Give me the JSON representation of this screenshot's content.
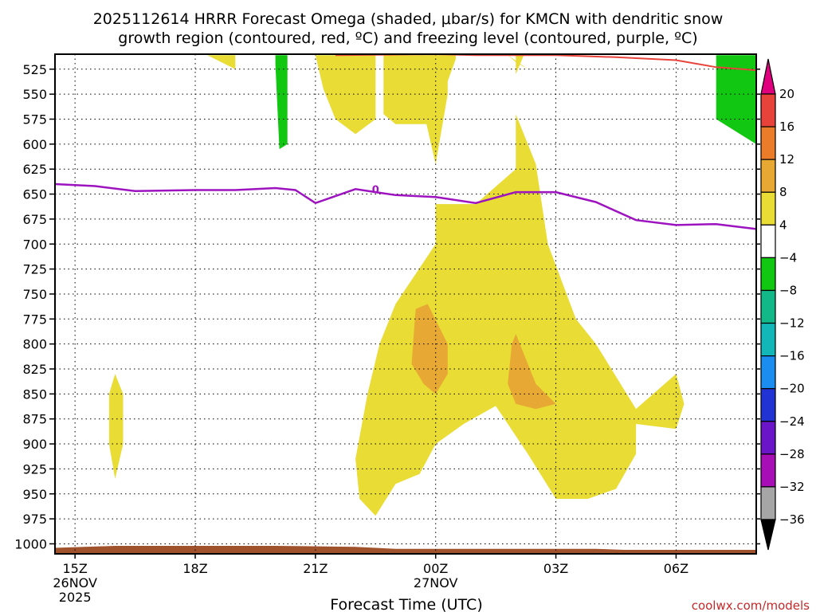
{
  "title_line1": "2025112614 HRRR Forecast Omega (shaded, μbar/s) for KMCN with dendritic snow",
  "title_line2": "growth region (contoured, red, ºC) and freezing level (contoured, purple, ºC)",
  "credit": "coolwx.com/models",
  "chart_data": {
    "type": "heatmap",
    "title": "2025112614 HRRR Forecast Omega (shaded, μbar/s) for KMCN with dendritic snow growth region (contoured, red, ºC) and freezing level (contoured, purple, ºC)",
    "xlabel": "Forecast Time (UTC)",
    "ylabel": "",
    "x_range_hours_utc": [
      14.5,
      32.0
    ],
    "y_range_hpa": [
      1010,
      510
    ],
    "y_ticks": [
      525,
      550,
      575,
      600,
      625,
      650,
      675,
      700,
      725,
      750,
      775,
      800,
      825,
      850,
      875,
      900,
      925,
      950,
      975,
      1000
    ],
    "x_ticks": [
      {
        "hour": 15,
        "label": "15Z",
        "date": "26NOV",
        "year": "2025"
      },
      {
        "hour": 18,
        "label": "18Z",
        "date": "",
        "year": ""
      },
      {
        "hour": 21,
        "label": "21Z",
        "date": "",
        "year": ""
      },
      {
        "hour": 24,
        "label": "00Z",
        "date": "27NOV",
        "year": ""
      },
      {
        "hour": 27,
        "label": "03Z",
        "date": "",
        "year": ""
      },
      {
        "hour": 30,
        "label": "06Z",
        "date": "",
        "year": ""
      }
    ],
    "colorbar": {
      "levels": [
        "20",
        "16",
        "12",
        "8",
        "4",
        "−4",
        "−8",
        "−12",
        "−16",
        "−20",
        "−24",
        "−28",
        "−32",
        "−36"
      ],
      "colors_top_to_bottom": [
        "#e0007e",
        "#e8433b",
        "#eb7d2a",
        "#e8a834",
        "#e8dc35",
        "#ffffff",
        "#12c712",
        "#13b888",
        "#13b7b7",
        "#1b8df0",
        "#2233d3",
        "#6a16c8",
        "#a70eb5",
        "#a6a6a6",
        "#000000"
      ]
    },
    "freezing_level": {
      "label": "0",
      "color": "#9c13bf",
      "points": [
        [
          14.5,
          640
        ],
        [
          15.5,
          642
        ],
        [
          16.5,
          647
        ],
        [
          18,
          646
        ],
        [
          19,
          646
        ],
        [
          20,
          644
        ],
        [
          20.5,
          646
        ],
        [
          21,
          659
        ],
        [
          22,
          645
        ],
        [
          22.5,
          648
        ],
        [
          23,
          651
        ],
        [
          24,
          653
        ],
        [
          25,
          659
        ],
        [
          26,
          648
        ],
        [
          27,
          648
        ],
        [
          28,
          658
        ],
        [
          29,
          676
        ],
        [
          30,
          681
        ],
        [
          31,
          680
        ],
        [
          32,
          685
        ]
      ]
    },
    "dgz_contour": {
      "color": "#e8433b",
      "points": [
        [
          21.5,
          511
        ],
        [
          24,
          510
        ],
        [
          25,
          511
        ],
        [
          27,
          511
        ],
        [
          28.5,
          513
        ],
        [
          30,
          516
        ],
        [
          31,
          523
        ],
        [
          32,
          526
        ]
      ]
    },
    "surface_fill": {
      "color": "#a0522d",
      "points": [
        [
          14.5,
          1004
        ],
        [
          16,
          1002
        ],
        [
          20,
          1002
        ],
        [
          22,
          1003
        ],
        [
          23,
          1005
        ],
        [
          26,
          1005
        ],
        [
          28,
          1005
        ],
        [
          28.7,
          1006
        ],
        [
          32,
          1006
        ]
      ]
    },
    "omega_regions": [
      {
        "value_range": "4 to 8",
        "color": "#e8dc35",
        "points": [
          [
            22,
            511
          ],
          [
            22.7,
            511
          ],
          [
            22.7,
            570
          ],
          [
            23,
            580
          ],
          [
            24.1,
            580
          ],
          [
            24,
            570
          ],
          [
            24.5,
            515
          ],
          [
            24.5,
            511
          ],
          [
            25,
            511
          ],
          [
            25.8,
            511
          ],
          [
            26.3,
            525
          ],
          [
            26,
            518
          ],
          [
            25.8,
            511
          ]
        ]
      },
      {
        "value_range": "4 to 8",
        "color": "#e8dc35",
        "points": [
          [
            18.3,
            511
          ],
          [
            19,
            511
          ],
          [
            19,
            525
          ],
          [
            18.3,
            511
          ]
        ]
      },
      {
        "value_range": "4 to 8",
        "color": "#e8dc35",
        "points": [
          [
            21,
            511
          ],
          [
            22.5,
            511
          ],
          [
            22.5,
            575
          ],
          [
            22,
            590
          ],
          [
            21.5,
            575
          ],
          [
            21.2,
            545
          ],
          [
            21,
            511
          ]
        ]
      },
      {
        "value_range": "4 to 8",
        "color": "#e8dc35",
        "points": [
          [
            23.6,
            511
          ],
          [
            24.3,
            511
          ],
          [
            24.3,
            550
          ],
          [
            24,
            620
          ],
          [
            23.6,
            550
          ],
          [
            23.6,
            511
          ]
        ]
      },
      {
        "value_range": "4 to 8",
        "color": "#e8dc35",
        "points": [
          [
            26.0,
            511
          ],
          [
            26.2,
            511
          ],
          [
            26.0,
            530
          ],
          [
            26.0,
            511
          ]
        ]
      },
      {
        "value_range": "4 to 8",
        "color": "#e8dc35",
        "points": [
          [
            16.0,
            830
          ],
          [
            16.2,
            850
          ],
          [
            16.2,
            900
          ],
          [
            16.0,
            935
          ],
          [
            15.85,
            900
          ],
          [
            15.85,
            850
          ],
          [
            16.0,
            830
          ]
        ]
      },
      {
        "value_range": "4 to 8",
        "color": "#e8dc35",
        "points": [
          [
            24,
            660
          ],
          [
            25,
            660
          ],
          [
            26,
            625
          ],
          [
            26,
            570
          ],
          [
            26.5,
            620
          ],
          [
            26.8,
            700
          ],
          [
            27.5,
            775
          ],
          [
            28,
            800
          ],
          [
            29,
            865
          ],
          [
            30,
            830
          ],
          [
            30.2,
            860
          ],
          [
            30,
            885
          ],
          [
            29,
            880
          ],
          [
            29,
            910
          ],
          [
            28.5,
            945
          ],
          [
            27.8,
            955
          ],
          [
            27,
            955
          ],
          [
            26.3,
            910
          ],
          [
            25.5,
            862
          ],
          [
            24.7,
            880
          ],
          [
            24,
            900
          ],
          [
            23.6,
            930
          ],
          [
            23,
            940
          ],
          [
            22.5,
            972
          ],
          [
            22.1,
            955
          ],
          [
            22,
            915
          ],
          [
            22.3,
            850
          ],
          [
            22.6,
            800
          ],
          [
            23,
            760
          ],
          [
            24,
            700
          ],
          [
            24,
            660
          ]
        ]
      }
    ],
    "omega_regions_8_12": [
      {
        "color": "#e8a834",
        "points": [
          [
            23.5,
            765
          ],
          [
            23.8,
            760
          ],
          [
            24.3,
            800
          ],
          [
            24.3,
            830
          ],
          [
            24,
            850
          ],
          [
            23.7,
            840
          ],
          [
            23.4,
            820
          ],
          [
            23.5,
            765
          ]
        ]
      },
      {
        "color": "#e8a834",
        "points": [
          [
            25.9,
            800
          ],
          [
            26,
            790
          ],
          [
            26.5,
            840
          ],
          [
            27,
            860
          ],
          [
            26.5,
            865
          ],
          [
            26,
            860
          ],
          [
            25.8,
            840
          ],
          [
            25.9,
            800
          ]
        ]
      }
    ],
    "omega_regions_neg": [
      {
        "color": "#12c712",
        "points": [
          [
            20,
            511
          ],
          [
            20.3,
            511
          ],
          [
            20.3,
            600
          ],
          [
            20.1,
            605
          ],
          [
            20,
            520
          ],
          [
            20,
            511
          ]
        ]
      },
      {
        "color": "#12c712",
        "points": [
          [
            31,
            511
          ],
          [
            32,
            511
          ],
          [
            32,
            600
          ],
          [
            31,
            575
          ],
          [
            31,
            511
          ]
        ]
      }
    ]
  }
}
